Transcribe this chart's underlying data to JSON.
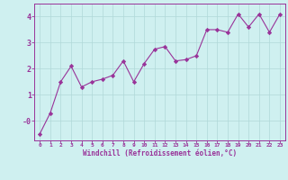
{
  "x": [
    0,
    1,
    2,
    3,
    4,
    5,
    6,
    7,
    8,
    9,
    10,
    11,
    12,
    13,
    14,
    15,
    16,
    17,
    18,
    19,
    20,
    21,
    22,
    23
  ],
  "y": [
    -0.5,
    0.3,
    1.5,
    2.1,
    1.3,
    1.5,
    1.6,
    1.75,
    2.3,
    1.5,
    2.2,
    2.75,
    2.85,
    2.3,
    2.35,
    2.5,
    3.5,
    3.5,
    3.4,
    4.1,
    3.6,
    4.1,
    3.4,
    4.1
  ],
  "line_color": "#993399",
  "marker": "D",
  "marker_size": 2.2,
  "background_color": "#cff0f0",
  "grid_color": "#b0d8d8",
  "xlabel": "Windchill (Refroidissement éolien,°C)",
  "ylabel": "",
  "ylim": [
    -0.75,
    4.5
  ],
  "xlim": [
    -0.5,
    23.5
  ],
  "yticks": [
    0,
    1,
    2,
    3,
    4
  ],
  "ytick_labels": [
    "-0",
    "1",
    "2",
    "3",
    "4"
  ],
  "xticks": [
    0,
    1,
    2,
    3,
    4,
    5,
    6,
    7,
    8,
    9,
    10,
    11,
    12,
    13,
    14,
    15,
    16,
    17,
    18,
    19,
    20,
    21,
    22,
    23
  ],
  "tick_color": "#993399",
  "label_color": "#993399",
  "spine_color": "#993399",
  "title": "",
  "figsize": [
    3.2,
    2.0
  ],
  "dpi": 100
}
